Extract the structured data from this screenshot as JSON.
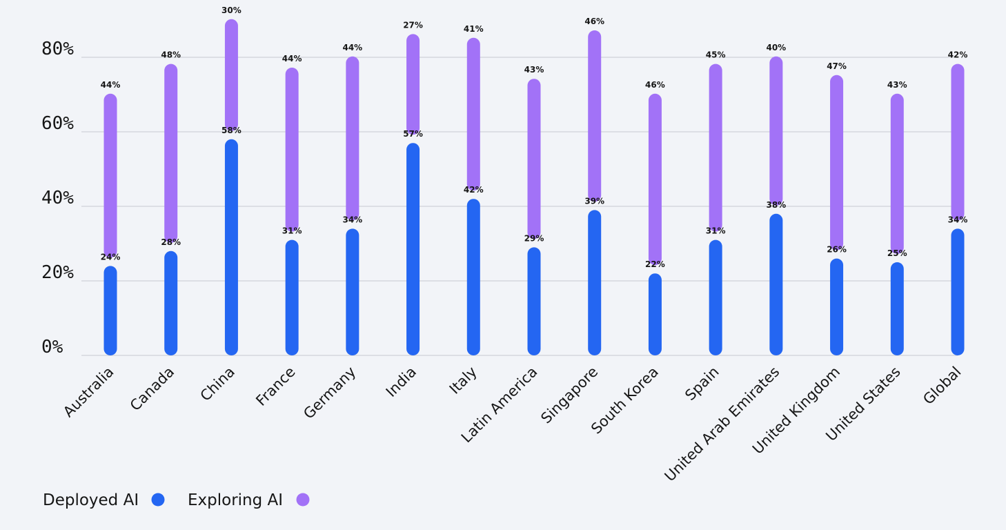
{
  "chart_data": {
    "type": "bar",
    "categories": [
      "Australia",
      "Canada",
      "China",
      "France",
      "Germany",
      "India",
      "Italy",
      "Latin America",
      "Singapore",
      "South Korea",
      "Spain",
      "United Arab Emirates",
      "United Kingdom",
      "United States",
      "Global"
    ],
    "series": [
      {
        "name": "Deployed AI",
        "color": "#2466f2",
        "values": [
          24,
          28,
          58,
          31,
          34,
          57,
          42,
          29,
          39,
          22,
          31,
          38,
          26,
          25,
          34
        ],
        "labels": [
          "24%",
          "28%",
          "58%",
          "31%",
          "34%",
          "57%",
          "42%",
          "29%",
          "39%",
          "22%",
          "31%",
          "38%",
          "26%",
          "25%",
          "34%"
        ]
      },
      {
        "name": "Exploring AI",
        "color": "#a272f7",
        "values": [
          44,
          48,
          30,
          44,
          44,
          27,
          41,
          43,
          46,
          46,
          45,
          40,
          47,
          43,
          42
        ],
        "labels": [
          "44%",
          "48%",
          "30%",
          "44%",
          "44%",
          "27%",
          "41%",
          "43%",
          "46%",
          "46%",
          "45%",
          "40%",
          "47%",
          "43%",
          "42%"
        ]
      }
    ],
    "yticks": [
      "0%",
      "20%",
      "40%",
      "60%",
      "80%"
    ],
    "ylim": [
      0,
      80
    ],
    "grid": true,
    "legend_position": "bottom-left",
    "title": "",
    "xlabel": "",
    "ylabel": ""
  },
  "legend": {
    "deployed_label": "Deployed AI",
    "exploring_label": "Exploring AI"
  }
}
